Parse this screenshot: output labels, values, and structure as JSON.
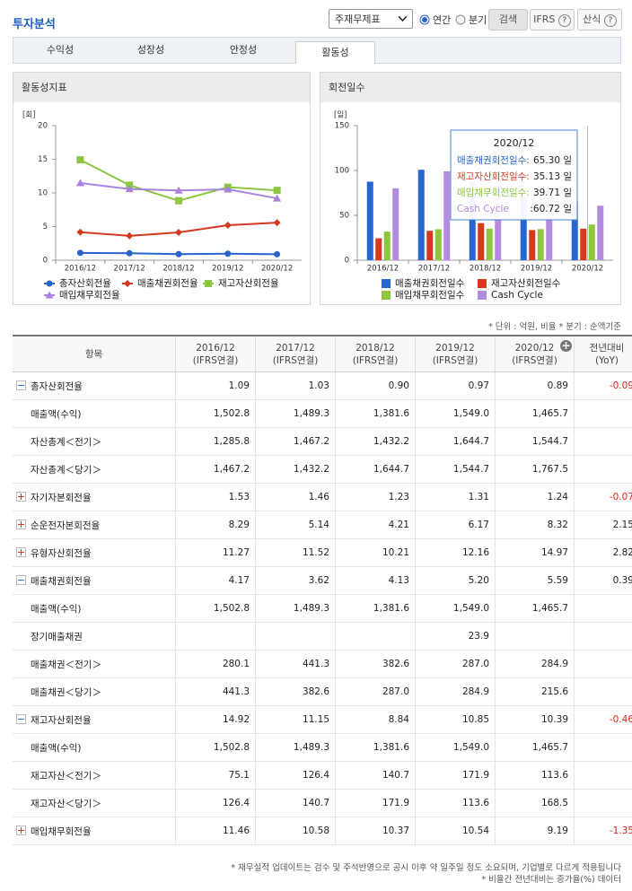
{
  "header": {
    "title": "투자분석",
    "select": "주재무제표",
    "radios": [
      "연간",
      "분기"
    ],
    "search": "검색",
    "ifrs": "IFRS",
    "formula": "산식"
  },
  "tabs": [
    "수익성",
    "성장성",
    "안정성",
    "활동성"
  ],
  "chart_data": [
    {
      "type": "line",
      "title": "활동성지표",
      "y_unit": "[회]",
      "categories": [
        "2016/12",
        "2017/12",
        "2018/12",
        "2019/12",
        "2020/12"
      ],
      "ylim": [
        0,
        20
      ],
      "yticks": [
        0,
        5,
        10,
        15,
        20
      ],
      "grid": false,
      "series": [
        {
          "name": "총자산회전율",
          "color": "#2a62cc",
          "marker": "circle",
          "values": [
            1.09,
            1.03,
            0.9,
            0.97,
            0.89
          ]
        },
        {
          "name": "매출채권회전율",
          "color": "#d23a1f",
          "marker": "diamond",
          "values": [
            4.17,
            3.62,
            4.13,
            5.2,
            5.59
          ]
        },
        {
          "name": "재고자산회전율",
          "color": "#8dc63f",
          "marker": "square",
          "values": [
            14.92,
            11.15,
            8.84,
            10.85,
            10.39
          ]
        },
        {
          "name": "매입채무회전율",
          "color": "#a883e0",
          "marker": "triangle",
          "values": [
            11.46,
            10.58,
            10.37,
            10.54,
            9.19
          ]
        }
      ]
    },
    {
      "type": "bar",
      "title": "회전일수",
      "y_unit": "[일]",
      "categories": [
        "2016/12",
        "2017/12",
        "2018/12",
        "2019/12",
        "2020/12"
      ],
      "ylim": [
        0,
        150
      ],
      "yticks": [
        0,
        50,
        100,
        150
      ],
      "grid": false,
      "series": [
        {
          "name": "매출채권회전일수",
          "color": "#2866d2",
          "values": [
            87.53,
            100.83,
            88.38,
            70.19,
            65.3
          ]
        },
        {
          "name": "재고자산회전일수",
          "color": "#d53a1f",
          "values": [
            24.46,
            32.74,
            41.29,
            33.64,
            35.13
          ]
        },
        {
          "name": "매입채무회전일수",
          "color": "#8dc63f",
          "values": [
            31.85,
            34.5,
            35.2,
            34.63,
            39.71
          ]
        },
        {
          "name": "Cash Cycle",
          "color": "#b28ae0",
          "values": [
            80.14,
            99.07,
            94.47,
            69.2,
            60.72
          ]
        }
      ],
      "tooltip": {
        "title": "2020/12",
        "items": [
          {
            "label": "매출채권회전일수:",
            "value_label": "65.30 일"
          },
          {
            "label": "재고자산회전일수:",
            "value_label": "35.13 일"
          },
          {
            "label": "매입채무회전일수:",
            "value_label": "39.71 일"
          },
          {
            "label": "Cash Cycle",
            "value_label": ":60.72 일"
          }
        ]
      }
    }
  ],
  "note": "* 단위 : 억원, 비율   * 분기 : 순액기준",
  "table": {
    "columns": [
      {
        "period": "항목"
      },
      {
        "period": "2016/12",
        "basis": "(IFRS연결)"
      },
      {
        "period": "2017/12",
        "basis": "(IFRS연결)"
      },
      {
        "period": "2018/12",
        "basis": "(IFRS연결)"
      },
      {
        "period": "2019/12",
        "basis": "(IFRS연결)"
      },
      {
        "period": "2020/12",
        "basis": "(IFRS연결)"
      },
      {
        "period": "전년대비",
        "basis": "(YoY)"
      }
    ],
    "rows": [
      {
        "label": "총자산회전율",
        "icon": "minus",
        "cells": [
          "1.09",
          "1.03",
          "0.90",
          "0.97",
          "0.89"
        ],
        "yoy": "-0.09"
      },
      {
        "label": "매출액(수익)",
        "icon": null,
        "cells": [
          "1,502.8",
          "1,489.3",
          "1,381.6",
          "1,549.0",
          "1,465.7"
        ],
        "yoy": null
      },
      {
        "label": "자산총계＜전기＞",
        "icon": null,
        "cells": [
          "1,285.8",
          "1,467.2",
          "1,432.2",
          "1,644.7",
          "1,544.7"
        ],
        "yoy": null
      },
      {
        "label": "자산총계＜당기＞",
        "icon": null,
        "cells": [
          "1,467.2",
          "1,432.2",
          "1,644.7",
          "1,544.7",
          "1,767.5"
        ],
        "yoy": null
      },
      {
        "label": "자기자본회전율",
        "icon": "plus",
        "cells": [
          "1.53",
          "1.46",
          "1.23",
          "1.31",
          "1.24"
        ],
        "yoy": "-0.07"
      },
      {
        "label": "순운전자본회전율",
        "icon": "plus",
        "cells": [
          "8.29",
          "5.14",
          "4.21",
          "6.17",
          "8.32"
        ],
        "yoy": "2.15"
      },
      {
        "label": "유형자산회전율",
        "icon": "plus",
        "cells": [
          "11.27",
          "11.52",
          "10.21",
          "12.16",
          "14.97"
        ],
        "yoy": "2.82"
      },
      {
        "label": "매출채권회전율",
        "icon": "minus",
        "cells": [
          "4.17",
          "3.62",
          "4.13",
          "5.20",
          "5.59"
        ],
        "yoy": "0.39"
      },
      {
        "label": "매출액(수익)",
        "icon": null,
        "cells": [
          "1,502.8",
          "1,489.3",
          "1,381.6",
          "1,549.0",
          "1,465.7"
        ],
        "yoy": null
      },
      {
        "label": "장기매출채권",
        "icon": null,
        "cells": [
          null,
          null,
          null,
          "23.9",
          null
        ],
        "yoy": null
      },
      {
        "label": "매출채권＜전기＞",
        "icon": null,
        "cells": [
          "280.1",
          "441.3",
          "382.6",
          "287.0",
          "284.9"
        ],
        "yoy": null
      },
      {
        "label": "매출채권＜당기＞",
        "icon": null,
        "cells": [
          "441.3",
          "382.6",
          "287.0",
          "284.9",
          "215.6"
        ],
        "yoy": null
      },
      {
        "label": "재고자산회전율",
        "icon": "minus",
        "cells": [
          "14.92",
          "11.15",
          "8.84",
          "10.85",
          "10.39"
        ],
        "yoy": "-0.46"
      },
      {
        "label": "매출액(수익)",
        "icon": null,
        "cells": [
          "1,502.8",
          "1,489.3",
          "1,381.6",
          "1,549.0",
          "1,465.7"
        ],
        "yoy": null
      },
      {
        "label": "재고자산＜전기＞",
        "icon": null,
        "cells": [
          "75.1",
          "126.4",
          "140.7",
          "171.9",
          "113.6"
        ],
        "yoy": null
      },
      {
        "label": "재고자산＜당기＞",
        "icon": null,
        "cells": [
          "126.4",
          "140.7",
          "171.9",
          "113.6",
          "168.5"
        ],
        "yoy": null
      },
      {
        "label": "매입채무회전율",
        "icon": "plus",
        "cells": [
          "11.46",
          "10.58",
          "10.37",
          "10.54",
          "9.19"
        ],
        "yoy": "-1.35"
      }
    ]
  },
  "footnotes": [
    "* 재무실적 업데이트는 검수 및 주석반영으로 공시 이후 약 일주일 정도 소요되며, 기업별로 다르게 적용됩니다",
    "* 비율간 전년대비는 증가율(%) 데이터"
  ]
}
